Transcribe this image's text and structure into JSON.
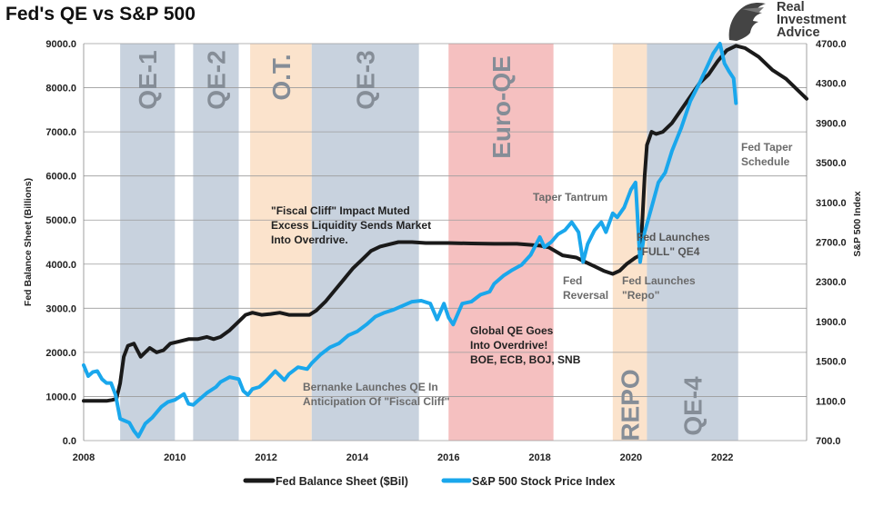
{
  "header": {
    "title": "Fed's QE vs S&P 500",
    "logo_lines": [
      "Real",
      "Investment",
      "Advice"
    ]
  },
  "colors": {
    "balance_sheet": "#1a1a1a",
    "sp500": "#1aa7ec",
    "band_blue": "#c8d2de",
    "band_orange": "#fbe3cc",
    "band_red": "#f5c0c0",
    "band_label": "#858d97"
  },
  "chart_data": {
    "type": "line",
    "title": "Fed's QE vs S&P 500",
    "xlabel": "",
    "ylabel": "Fed Balance Sheet (Billions)",
    "y2label": "S&P 500 Index",
    "xlim": [
      2008,
      2023.85
    ],
    "ylim": [
      0,
      9000
    ],
    "y2lim": [
      700,
      4700
    ],
    "x_ticks": [
      "2008",
      "2010",
      "2012",
      "2014",
      "2016",
      "2018",
      "2020",
      "2022"
    ],
    "y_ticks": [
      "0.0",
      "1000.0",
      "2000.0",
      "3000.0",
      "4000.0",
      "5000.0",
      "6000.0",
      "7000.0",
      "8000.0",
      "9000.0"
    ],
    "y2_ticks": [
      "700.0",
      "1100.0",
      "1500.0",
      "1900.0",
      "2300.0",
      "2700.0",
      "3100.0",
      "3500.0",
      "3900.0",
      "4300.0",
      "4700.0"
    ],
    "grid": "horizontal",
    "legend_position": "bottom",
    "bands": [
      {
        "label": "QE-1",
        "start": 2008.8,
        "end": 2010.0,
        "color": "blue"
      },
      {
        "label": "QE-2",
        "start": 2010.4,
        "end": 2011.4,
        "color": "blue"
      },
      {
        "label": "O.T.",
        "start": 2011.65,
        "end": 2013.0,
        "color": "orange"
      },
      {
        "label": "QE-3",
        "start": 2013.0,
        "end": 2015.35,
        "color": "blue"
      },
      {
        "label": "Euro-QE",
        "start": 2016.0,
        "end": 2018.3,
        "color": "red"
      },
      {
        "label": "REPO",
        "start": 2019.6,
        "end": 2020.35,
        "color": "orange"
      },
      {
        "label": "QE-4",
        "start": 2020.35,
        "end": 2022.35,
        "color": "blue"
      }
    ],
    "annotations": [
      {
        "lines": [
          "\"Fiscal Cliff\" Impact Muted",
          "Excess Liquidity Sends Market",
          "Into Overdrive."
        ],
        "color": "#222222"
      },
      {
        "lines": [
          "Bernanke Launches QE In",
          "Anticipation Of \"Fiscal Cliff\""
        ],
        "color": "#6b6b6b"
      },
      {
        "lines": [
          "Global QE Goes",
          "Into Overdrive!",
          "BOE, ECB, BOJ, SNB"
        ],
        "color": "#222222"
      },
      {
        "lines": [
          "Taper Tantrum"
        ],
        "color": "#6b6b6b"
      },
      {
        "lines": [
          "Fed",
          "Reversal"
        ],
        "color": "#6b6b6b"
      },
      {
        "lines": [
          "Fed Launches",
          "\"Repo\""
        ],
        "color": "#6b6b6b"
      },
      {
        "lines": [
          "Fed Launches",
          "\"FULL\" QE4"
        ],
        "color": "#555555"
      },
      {
        "lines": [
          "Fed Taper",
          "Schedule"
        ],
        "color": "#6b6b6b"
      }
    ],
    "series": [
      {
        "name": "Fed Balance Sheet ($Bil)",
        "axis": "left",
        "points": [
          [
            2008.0,
            900
          ],
          [
            2008.5,
            900
          ],
          [
            2008.62,
            920
          ],
          [
            2008.72,
            950
          ],
          [
            2008.8,
            1300
          ],
          [
            2008.88,
            1900
          ],
          [
            2008.97,
            2150
          ],
          [
            2009.1,
            2200
          ],
          [
            2009.25,
            1900
          ],
          [
            2009.45,
            2100
          ],
          [
            2009.6,
            2000
          ],
          [
            2009.75,
            2050
          ],
          [
            2009.9,
            2200
          ],
          [
            2010.1,
            2250
          ],
          [
            2010.3,
            2300
          ],
          [
            2010.5,
            2300
          ],
          [
            2010.7,
            2350
          ],
          [
            2010.85,
            2300
          ],
          [
            2011.0,
            2350
          ],
          [
            2011.2,
            2500
          ],
          [
            2011.4,
            2700
          ],
          [
            2011.55,
            2850
          ],
          [
            2011.7,
            2900
          ],
          [
            2011.9,
            2850
          ],
          [
            2012.1,
            2870
          ],
          [
            2012.3,
            2900
          ],
          [
            2012.5,
            2850
          ],
          [
            2012.8,
            2850
          ],
          [
            2012.95,
            2850
          ],
          [
            2013.1,
            2950
          ],
          [
            2013.3,
            3150
          ],
          [
            2013.5,
            3400
          ],
          [
            2013.7,
            3650
          ],
          [
            2013.9,
            3900
          ],
          [
            2014.1,
            4100
          ],
          [
            2014.3,
            4300
          ],
          [
            2014.5,
            4400
          ],
          [
            2014.7,
            4450
          ],
          [
            2014.9,
            4500
          ],
          [
            2015.2,
            4500
          ],
          [
            2015.5,
            4480
          ],
          [
            2016.0,
            4480
          ],
          [
            2016.5,
            4470
          ],
          [
            2017.0,
            4460
          ],
          [
            2017.5,
            4460
          ],
          [
            2018.0,
            4420
          ],
          [
            2018.2,
            4380
          ],
          [
            2018.5,
            4200
          ],
          [
            2018.8,
            4150
          ],
          [
            2019.0,
            4050
          ],
          [
            2019.2,
            3950
          ],
          [
            2019.4,
            3850
          ],
          [
            2019.6,
            3780
          ],
          [
            2019.75,
            3850
          ],
          [
            2019.9,
            4000
          ],
          [
            2020.1,
            4150
          ],
          [
            2020.2,
            4200
          ],
          [
            2020.25,
            5000
          ],
          [
            2020.3,
            6000
          ],
          [
            2020.35,
            6700
          ],
          [
            2020.45,
            7000
          ],
          [
            2020.55,
            6950
          ],
          [
            2020.7,
            7000
          ],
          [
            2020.9,
            7200
          ],
          [
            2021.1,
            7500
          ],
          [
            2021.3,
            7800
          ],
          [
            2021.5,
            8100
          ],
          [
            2021.7,
            8300
          ],
          [
            2021.9,
            8600
          ],
          [
            2022.1,
            8850
          ],
          [
            2022.3,
            8950
          ],
          [
            2022.5,
            8900
          ],
          [
            2022.8,
            8700
          ],
          [
            2023.1,
            8400
          ],
          [
            2023.4,
            8200
          ],
          [
            2023.7,
            7900
          ],
          [
            2023.85,
            7750
          ]
        ]
      },
      {
        "name": "S&P 500 Stock Price Index",
        "axis": "right",
        "points": [
          [
            2008.0,
            1460
          ],
          [
            2008.1,
            1350
          ],
          [
            2008.2,
            1390
          ],
          [
            2008.3,
            1400
          ],
          [
            2008.4,
            1320
          ],
          [
            2008.5,
            1280
          ],
          [
            2008.6,
            1280
          ],
          [
            2008.7,
            1160
          ],
          [
            2008.8,
            920
          ],
          [
            2008.9,
            900
          ],
          [
            2009.0,
            880
          ],
          [
            2009.1,
            800
          ],
          [
            2009.2,
            740
          ],
          [
            2009.35,
            870
          ],
          [
            2009.5,
            930
          ],
          [
            2009.7,
            1040
          ],
          [
            2009.85,
            1090
          ],
          [
            2010.0,
            1110
          ],
          [
            2010.2,
            1170
          ],
          [
            2010.3,
            1070
          ],
          [
            2010.4,
            1060
          ],
          [
            2010.5,
            1100
          ],
          [
            2010.7,
            1180
          ],
          [
            2010.9,
            1240
          ],
          [
            2011.0,
            1290
          ],
          [
            2011.2,
            1340
          ],
          [
            2011.4,
            1320
          ],
          [
            2011.5,
            1200
          ],
          [
            2011.6,
            1160
          ],
          [
            2011.7,
            1220
          ],
          [
            2011.85,
            1240
          ],
          [
            2012.0,
            1300
          ],
          [
            2012.2,
            1400
          ],
          [
            2012.4,
            1310
          ],
          [
            2012.5,
            1370
          ],
          [
            2012.7,
            1440
          ],
          [
            2012.9,
            1420
          ],
          [
            2013.0,
            1480
          ],
          [
            2013.2,
            1570
          ],
          [
            2013.4,
            1640
          ],
          [
            2013.6,
            1680
          ],
          [
            2013.8,
            1760
          ],
          [
            2014.0,
            1800
          ],
          [
            2014.2,
            1870
          ],
          [
            2014.4,
            1950
          ],
          [
            2014.6,
            1990
          ],
          [
            2014.8,
            2020
          ],
          [
            2015.0,
            2060
          ],
          [
            2015.2,
            2100
          ],
          [
            2015.4,
            2110
          ],
          [
            2015.6,
            2080
          ],
          [
            2015.75,
            1920
          ],
          [
            2015.9,
            2080
          ],
          [
            2016.0,
            1940
          ],
          [
            2016.1,
            1870
          ],
          [
            2016.3,
            2080
          ],
          [
            2016.5,
            2100
          ],
          [
            2016.7,
            2170
          ],
          [
            2016.9,
            2200
          ],
          [
            2017.0,
            2280
          ],
          [
            2017.2,
            2360
          ],
          [
            2017.4,
            2420
          ],
          [
            2017.6,
            2470
          ],
          [
            2017.8,
            2570
          ],
          [
            2018.0,
            2750
          ],
          [
            2018.1,
            2650
          ],
          [
            2018.25,
            2700
          ],
          [
            2018.4,
            2780
          ],
          [
            2018.55,
            2820
          ],
          [
            2018.7,
            2900
          ],
          [
            2018.85,
            2800
          ],
          [
            2018.95,
            2500
          ],
          [
            2019.05,
            2680
          ],
          [
            2019.2,
            2820
          ],
          [
            2019.35,
            2900
          ],
          [
            2019.45,
            2800
          ],
          [
            2019.6,
            2990
          ],
          [
            2019.7,
            2950
          ],
          [
            2019.85,
            3050
          ],
          [
            2020.0,
            3230
          ],
          [
            2020.1,
            3300
          ],
          [
            2020.2,
            2500
          ],
          [
            2020.3,
            2800
          ],
          [
            2020.45,
            3050
          ],
          [
            2020.6,
            3300
          ],
          [
            2020.75,
            3400
          ],
          [
            2020.9,
            3620
          ],
          [
            2021.1,
            3850
          ],
          [
            2021.3,
            4120
          ],
          [
            2021.5,
            4300
          ],
          [
            2021.65,
            4450
          ],
          [
            2021.8,
            4600
          ],
          [
            2021.95,
            4700
          ],
          [
            2022.05,
            4500
          ],
          [
            2022.15,
            4420
          ],
          [
            2022.25,
            4350
          ],
          [
            2022.3,
            4100
          ]
        ]
      }
    ]
  }
}
